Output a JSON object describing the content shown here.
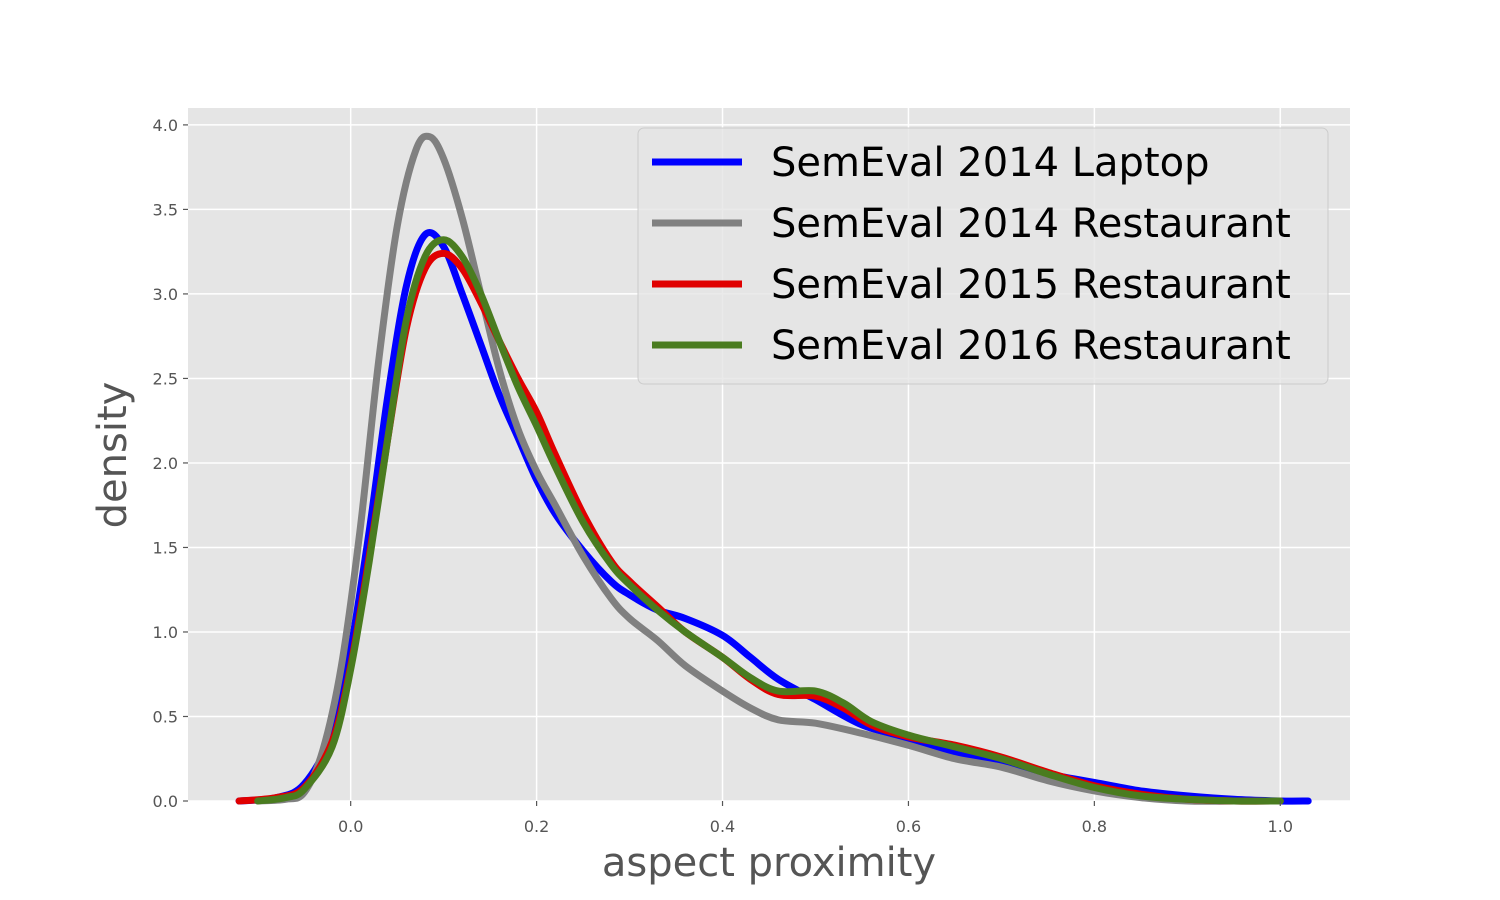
{
  "chart_data": {
    "type": "line",
    "title": "",
    "xlabel": "aspect proximity",
    "ylabel": "density",
    "xlim": [
      -0.175,
      1.075
    ],
    "ylim": [
      0,
      4.1
    ],
    "xticks": [
      "0.0",
      "0.2",
      "0.4",
      "0.6",
      "0.8",
      "1.0"
    ],
    "xtick_values": [
      0,
      0.2,
      0.4,
      0.6,
      0.8,
      1.0
    ],
    "yticks": [
      "0.0",
      "0.5",
      "1.0",
      "1.5",
      "2.0",
      "2.5",
      "3.0",
      "3.5",
      "4.0"
    ],
    "ytick_values": [
      0,
      0.5,
      1.0,
      1.5,
      2.0,
      2.5,
      3.0,
      3.5,
      4.0
    ],
    "grid": true,
    "legend_position": "top-right",
    "series": [
      {
        "name": "SemEval 2014 Laptop",
        "color": "#0000ff",
        "points": [
          [
            -0.12,
            0
          ],
          [
            -0.08,
            0.02
          ],
          [
            -0.05,
            0.1
          ],
          [
            -0.02,
            0.4
          ],
          [
            0,
            0.9
          ],
          [
            0.02,
            1.6
          ],
          [
            0.04,
            2.4
          ],
          [
            0.06,
            3.05
          ],
          [
            0.08,
            3.35
          ],
          [
            0.1,
            3.28
          ],
          [
            0.12,
            3.0
          ],
          [
            0.14,
            2.7
          ],
          [
            0.16,
            2.4
          ],
          [
            0.18,
            2.15
          ],
          [
            0.2,
            1.9
          ],
          [
            0.22,
            1.7
          ],
          [
            0.25,
            1.48
          ],
          [
            0.28,
            1.3
          ],
          [
            0.3,
            1.22
          ],
          [
            0.33,
            1.13
          ],
          [
            0.36,
            1.08
          ],
          [
            0.4,
            0.98
          ],
          [
            0.43,
            0.85
          ],
          [
            0.46,
            0.72
          ],
          [
            0.5,
            0.6
          ],
          [
            0.55,
            0.45
          ],
          [
            0.6,
            0.37
          ],
          [
            0.65,
            0.28
          ],
          [
            0.7,
            0.22
          ],
          [
            0.75,
            0.16
          ],
          [
            0.8,
            0.11
          ],
          [
            0.85,
            0.06
          ],
          [
            0.9,
            0.03
          ],
          [
            0.95,
            0.01
          ],
          [
            1.0,
            0.0
          ],
          [
            1.03,
            0.0
          ]
        ]
      },
      {
        "name": "SemEval 2014 Restaurant",
        "color": "#808080",
        "points": [
          [
            -0.1,
            0
          ],
          [
            -0.07,
            0.01
          ],
          [
            -0.05,
            0.05
          ],
          [
            -0.03,
            0.3
          ],
          [
            -0.01,
            0.8
          ],
          [
            0.01,
            1.6
          ],
          [
            0.03,
            2.6
          ],
          [
            0.05,
            3.4
          ],
          [
            0.07,
            3.85
          ],
          [
            0.085,
            3.93
          ],
          [
            0.1,
            3.8
          ],
          [
            0.12,
            3.45
          ],
          [
            0.14,
            3.0
          ],
          [
            0.16,
            2.55
          ],
          [
            0.18,
            2.2
          ],
          [
            0.2,
            1.95
          ],
          [
            0.22,
            1.75
          ],
          [
            0.25,
            1.45
          ],
          [
            0.28,
            1.2
          ],
          [
            0.3,
            1.08
          ],
          [
            0.33,
            0.95
          ],
          [
            0.36,
            0.8
          ],
          [
            0.4,
            0.65
          ],
          [
            0.43,
            0.55
          ],
          [
            0.46,
            0.48
          ],
          [
            0.5,
            0.46
          ],
          [
            0.55,
            0.4
          ],
          [
            0.6,
            0.33
          ],
          [
            0.65,
            0.25
          ],
          [
            0.7,
            0.2
          ],
          [
            0.75,
            0.12
          ],
          [
            0.8,
            0.06
          ],
          [
            0.85,
            0.02
          ],
          [
            0.9,
            0.0
          ],
          [
            0.95,
            0.0
          ]
        ]
      },
      {
        "name": "SemEval 2015 Restaurant",
        "color": "#e00000",
        "points": [
          [
            -0.12,
            0
          ],
          [
            -0.08,
            0.02
          ],
          [
            -0.05,
            0.08
          ],
          [
            -0.02,
            0.35
          ],
          [
            0,
            0.8
          ],
          [
            0.02,
            1.45
          ],
          [
            0.04,
            2.15
          ],
          [
            0.06,
            2.8
          ],
          [
            0.08,
            3.15
          ],
          [
            0.1,
            3.24
          ],
          [
            0.12,
            3.15
          ],
          [
            0.14,
            2.95
          ],
          [
            0.16,
            2.72
          ],
          [
            0.18,
            2.5
          ],
          [
            0.2,
            2.3
          ],
          [
            0.22,
            2.05
          ],
          [
            0.25,
            1.7
          ],
          [
            0.28,
            1.42
          ],
          [
            0.3,
            1.3
          ],
          [
            0.33,
            1.15
          ],
          [
            0.36,
            1.0
          ],
          [
            0.4,
            0.85
          ],
          [
            0.43,
            0.72
          ],
          [
            0.46,
            0.63
          ],
          [
            0.5,
            0.62
          ],
          [
            0.53,
            0.55
          ],
          [
            0.56,
            0.45
          ],
          [
            0.6,
            0.38
          ],
          [
            0.65,
            0.33
          ],
          [
            0.7,
            0.26
          ],
          [
            0.75,
            0.17
          ],
          [
            0.8,
            0.09
          ],
          [
            0.85,
            0.04
          ],
          [
            0.9,
            0.01
          ],
          [
            0.95,
            0.0
          ],
          [
            1.0,
            0.0
          ]
        ]
      },
      {
        "name": "SemEval 2016 Restaurant",
        "color": "#4a7c1f",
        "points": [
          [
            -0.1,
            0
          ],
          [
            -0.07,
            0.02
          ],
          [
            -0.05,
            0.07
          ],
          [
            -0.02,
            0.32
          ],
          [
            0,
            0.78
          ],
          [
            0.02,
            1.42
          ],
          [
            0.04,
            2.15
          ],
          [
            0.06,
            2.85
          ],
          [
            0.08,
            3.22
          ],
          [
            0.1,
            3.32
          ],
          [
            0.12,
            3.22
          ],
          [
            0.14,
            3.0
          ],
          [
            0.16,
            2.72
          ],
          [
            0.18,
            2.45
          ],
          [
            0.2,
            2.22
          ],
          [
            0.22,
            1.98
          ],
          [
            0.25,
            1.65
          ],
          [
            0.28,
            1.4
          ],
          [
            0.3,
            1.28
          ],
          [
            0.33,
            1.13
          ],
          [
            0.36,
            1.0
          ],
          [
            0.4,
            0.85
          ],
          [
            0.43,
            0.73
          ],
          [
            0.46,
            0.65
          ],
          [
            0.5,
            0.65
          ],
          [
            0.53,
            0.58
          ],
          [
            0.56,
            0.47
          ],
          [
            0.6,
            0.39
          ],
          [
            0.65,
            0.32
          ],
          [
            0.7,
            0.25
          ],
          [
            0.75,
            0.16
          ],
          [
            0.8,
            0.08
          ],
          [
            0.85,
            0.03
          ],
          [
            0.9,
            0.01
          ],
          [
            0.95,
            0.0
          ],
          [
            1.0,
            0.0
          ]
        ]
      }
    ]
  }
}
